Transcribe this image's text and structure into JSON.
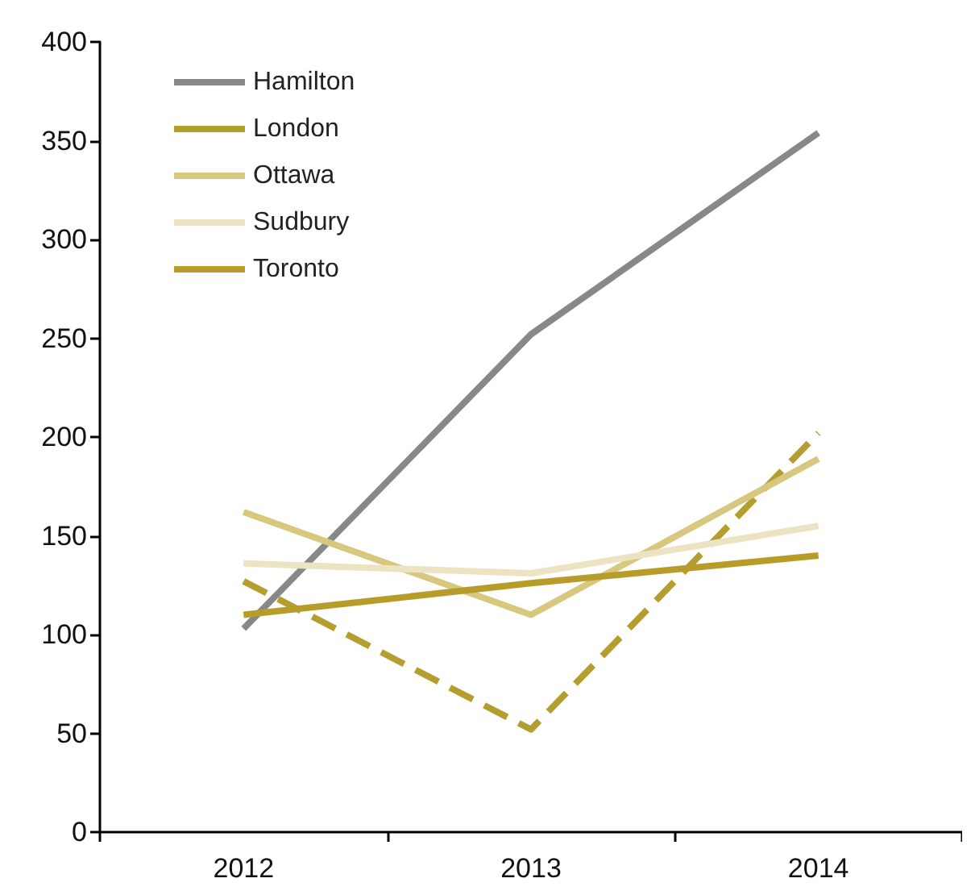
{
  "chart_data": {
    "type": "line",
    "categories": [
      "2012",
      "2013",
      "2014"
    ],
    "series": [
      {
        "name": "Hamilton",
        "color": "#88888a",
        "values": [
          103,
          252,
          354
        ]
      },
      {
        "name": "London",
        "color": "#b49e30",
        "values": [
          127,
          52,
          202
        ],
        "line_style": "dashed"
      },
      {
        "name": "Ottawa",
        "color": "#d8c77f",
        "values": [
          162,
          110,
          189
        ]
      },
      {
        "name": "Sudbury",
        "color": "#ece3c2",
        "values": [
          136,
          131,
          155
        ]
      },
      {
        "name": "Toronto",
        "color": "#b89c2a",
        "values": [
          110,
          126,
          140
        ]
      }
    ],
    "ylim": [
      0,
      400
    ],
    "yticks": [
      0,
      50,
      100,
      150,
      200,
      250,
      300,
      350,
      400
    ],
    "grid": false,
    "legend": "top left",
    "marker": "none",
    "line_style": "solid"
  }
}
